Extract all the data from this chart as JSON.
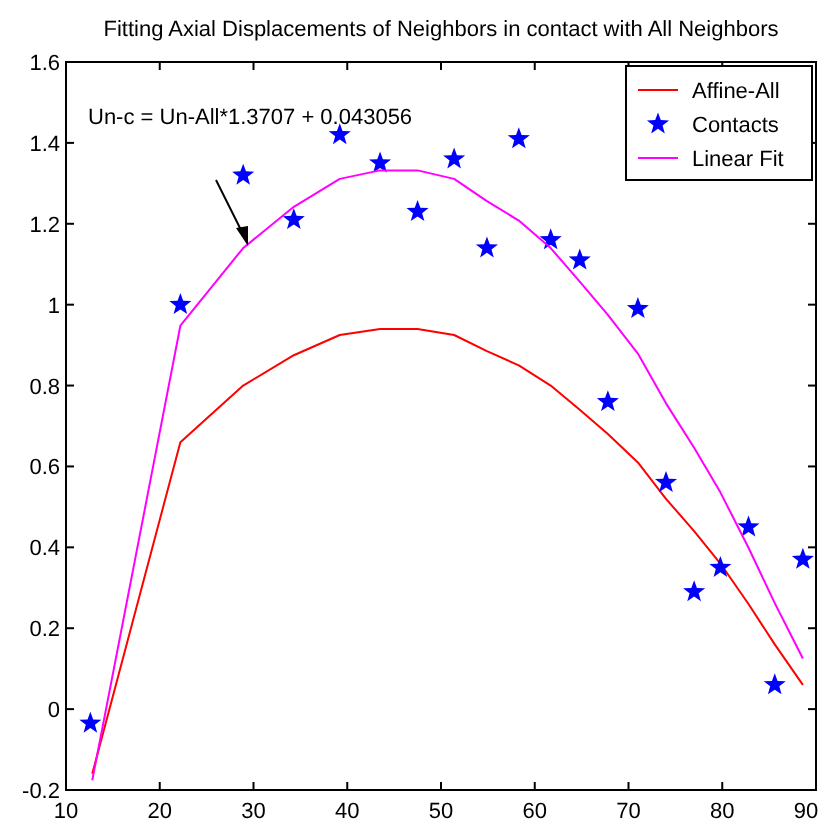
{
  "chart_data": {
    "type": "line",
    "title": "Fitting Axial Displacements of Neighbors in contact with All Neighbors",
    "annotations": [
      "Un-c = Un-All*1.3707 + 0.043056"
    ],
    "xlim": [
      10,
      90
    ],
    "xticks": [
      10,
      20,
      30,
      40,
      50,
      60,
      70,
      80,
      90
    ],
    "ylim": [
      -0.2,
      1.6
    ],
    "yticks": [
      -0.2,
      0,
      0.2,
      0.4,
      0.6,
      0.8,
      1,
      1.2,
      1.4,
      1.6
    ],
    "grid": false,
    "legend": "top right",
    "series": [
      {
        "name": "Affine-All",
        "color": "#ff0000",
        "marker": "none",
        "x": [
          12.8,
          22.2,
          28.9,
          34.3,
          39.2,
          43.5,
          47.5,
          51.4,
          54.9,
          58.3,
          61.7,
          64.8,
          67.8,
          71.0,
          74.0,
          77.0,
          79.8,
          82.8,
          85.6,
          88.6
        ],
        "values": [
          -0.16,
          0.66,
          0.8,
          0.875,
          0.925,
          0.94,
          0.94,
          0.925,
          0.885,
          0.85,
          0.8,
          0.74,
          0.68,
          0.61,
          0.52,
          0.44,
          0.36,
          0.26,
          0.16,
          0.06
        ]
      },
      {
        "name": "Contacts",
        "type": "scatter",
        "color": "#0000ff",
        "marker": "star",
        "x": [
          12.6,
          22.2,
          28.9,
          34.3,
          39.2,
          43.5,
          47.5,
          51.4,
          54.9,
          58.3,
          61.7,
          64.8,
          67.8,
          71.0,
          74.0,
          77.0,
          79.8,
          82.8,
          85.6,
          88.6
        ],
        "values": [
          -0.035,
          1.0,
          1.32,
          1.21,
          1.42,
          1.35,
          1.23,
          1.36,
          1.14,
          1.41,
          1.16,
          1.11,
          0.76,
          0.99,
          0.56,
          0.29,
          0.35,
          0.45,
          0.06,
          0.37
        ]
      },
      {
        "name": "Linear Fit",
        "color": "#ff00ff",
        "marker": "none",
        "x": [
          12.8,
          22.2,
          28.9,
          34.3,
          39.2,
          43.5,
          47.5,
          51.4,
          54.9,
          58.3,
          61.7,
          64.8,
          67.8,
          71.0,
          74.0,
          77.0,
          79.8,
          82.8,
          85.6,
          88.6
        ],
        "values": [
          -0.176,
          0.948,
          1.14,
          1.242,
          1.311,
          1.332,
          1.332,
          1.311,
          1.256,
          1.208,
          1.14,
          1.057,
          0.975,
          0.879,
          0.756,
          0.646,
          0.536,
          0.399,
          0.262,
          0.125
        ]
      }
    ]
  }
}
